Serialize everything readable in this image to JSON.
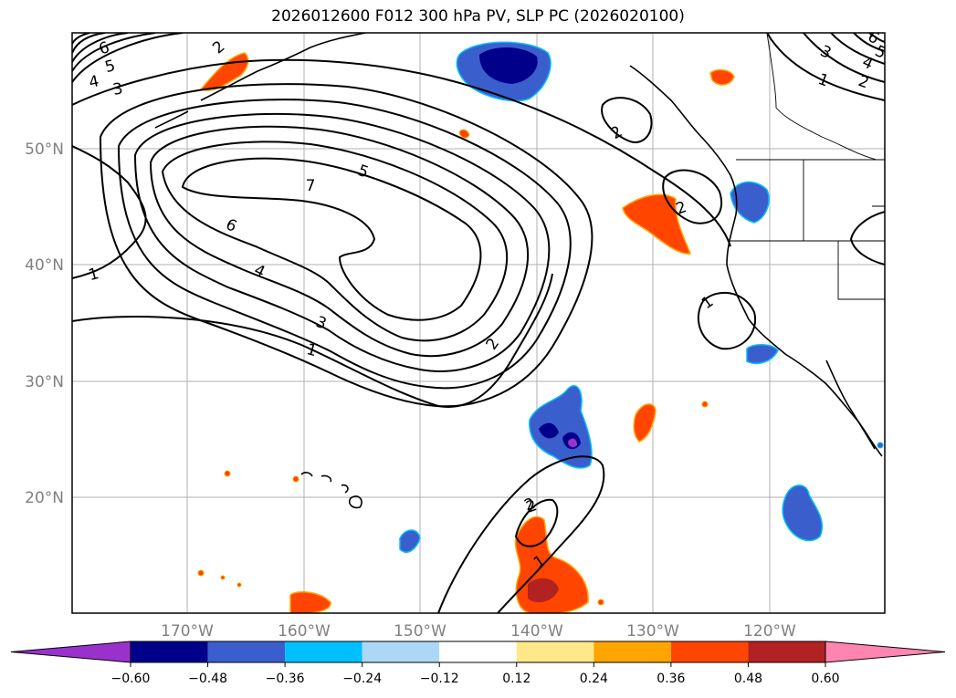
{
  "title": "2026012600 F012 300 hPa PV, SLP PC (2026020100)",
  "axes": {
    "lat_labels": [
      "50°N",
      "40°N",
      "30°N",
      "20°N"
    ],
    "lon_labels": [
      "170°W",
      "160°W",
      "150°W",
      "140°W",
      "130°W",
      "120°W"
    ]
  },
  "contour_labels": [
    "6",
    "5",
    "4",
    "3",
    "2",
    "7",
    "5",
    "6",
    "4",
    "3",
    "1",
    "1",
    "2",
    "2",
    "2",
    "2",
    "1",
    "6",
    "5",
    "4",
    "3",
    "1",
    "2",
    "2",
    "1"
  ],
  "colorbar": {
    "ticks": [
      "−0.60",
      "−0.48",
      "−0.36",
      "−0.24",
      "−0.12",
      "0.12",
      "0.24",
      "0.36",
      "0.48",
      "0.60"
    ],
    "colors": [
      "#9932cc",
      "#00008b",
      "#3a5fcd",
      "#00bfff",
      "#add8f5",
      "#ffffff",
      "#ffe88a",
      "#ffa500",
      "#ff4500",
      "#b22222",
      "#ff85b0"
    ]
  }
}
